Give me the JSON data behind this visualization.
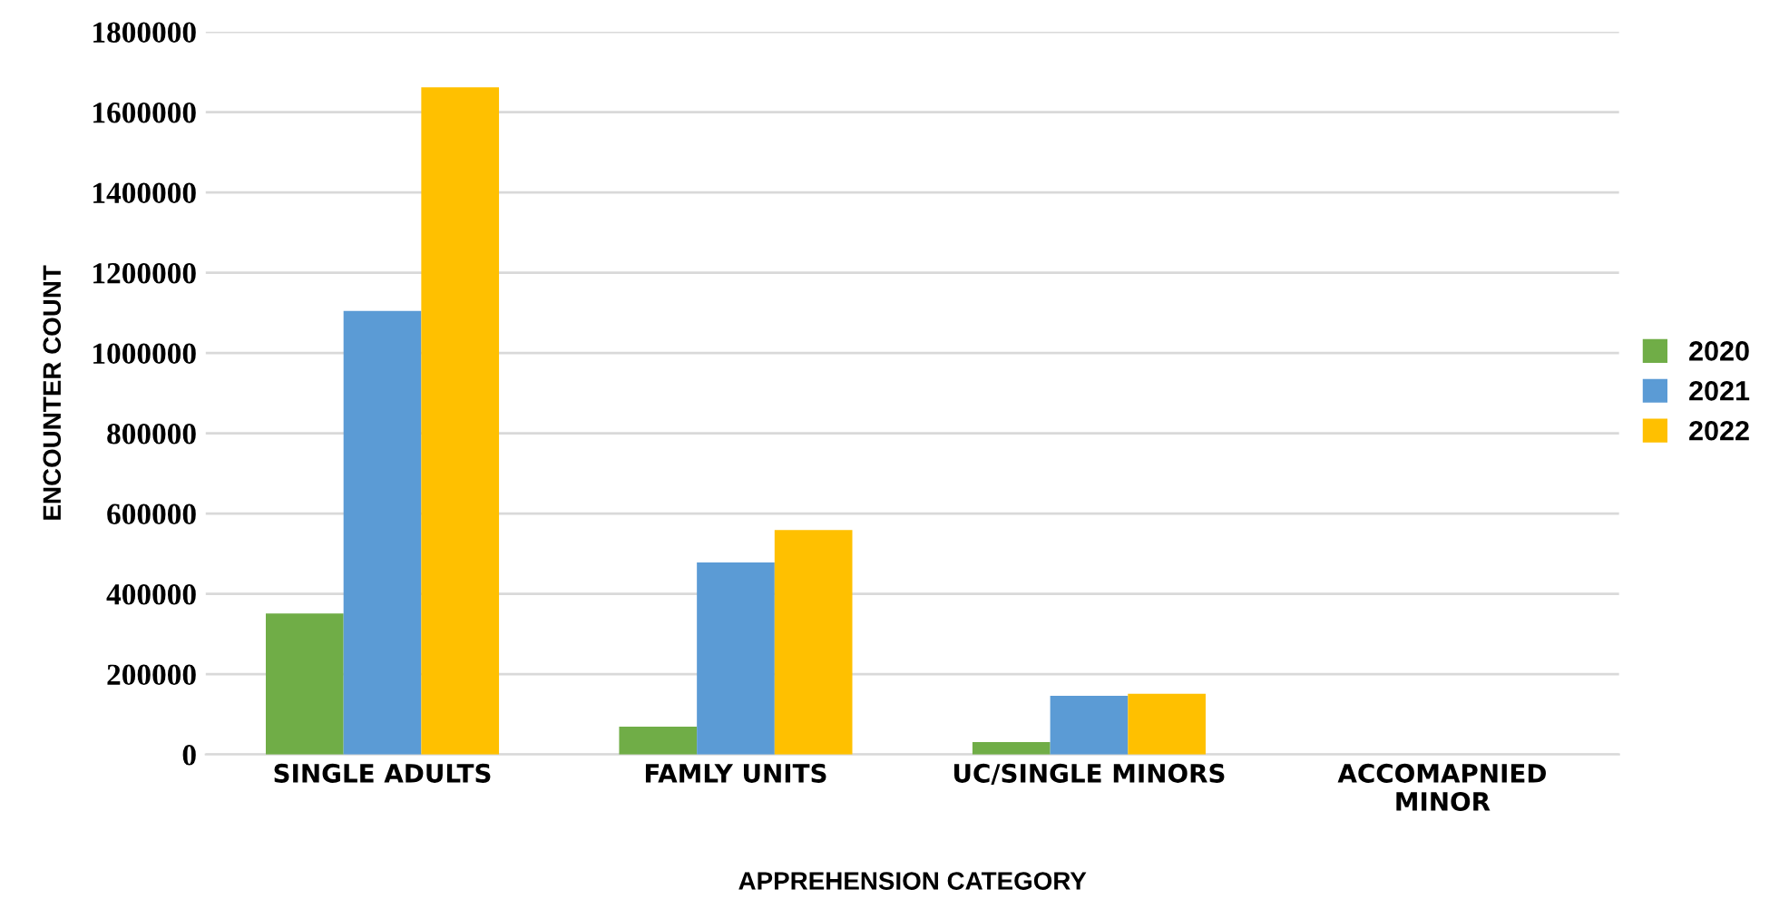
{
  "chart_data": {
    "type": "bar",
    "xlabel": "APPREHENSION CATEGORY",
    "ylabel": "ENCOUNTER COUNT",
    "categories": [
      "SINGLE ADULTS",
      "FAMLY UNITS",
      "UC/SINGLE MINORS",
      "ACCOMAPNIED\nMINOR"
    ],
    "series": [
      {
        "name": "2020",
        "color": "#70ad47",
        "values": [
          351000,
          69000,
          31000,
          0
        ]
      },
      {
        "name": "2021",
        "color": "#5b9bd5",
        "values": [
          1105000,
          478000,
          146000,
          0
        ]
      },
      {
        "name": "2022",
        "color": "#ffc000",
        "values": [
          1662000,
          559000,
          151000,
          0
        ]
      }
    ],
    "ylim": [
      0,
      1800000
    ],
    "yticks": [
      0,
      200000,
      400000,
      600000,
      800000,
      1000000,
      1200000,
      1400000,
      1600000,
      1800000
    ],
    "grid": "y",
    "legend": "right"
  }
}
